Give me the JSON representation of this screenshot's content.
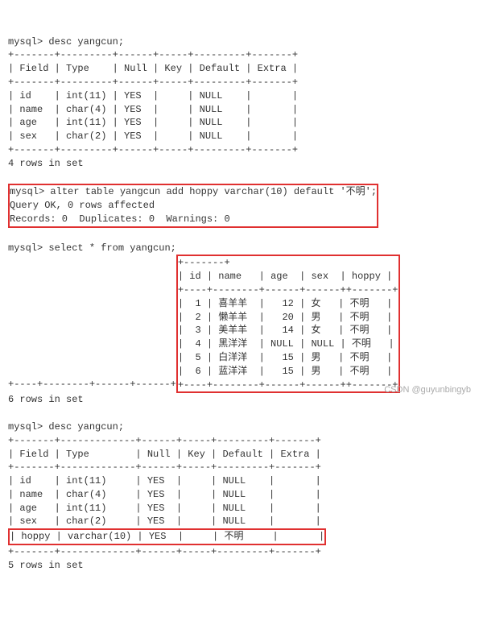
{
  "prompt": "mysql>",
  "cmd1": "desc yangcun;",
  "desc1": {
    "sep": "+-------+---------+------+-----+---------+-------+",
    "hdr": "| Field | Type    | Null | Key | Default | Extra |",
    "rows": [
      "| id    | int(11) | YES  |     | NULL    |       |",
      "| name  | char(4) | YES  |     | NULL    |       |",
      "| age   | int(11) | YES  |     | NULL    |       |",
      "| sex   | char(2) | YES  |     | NULL    |       |"
    ],
    "footer": "4 rows in set"
  },
  "alter": {
    "cmd": "alter table yangcun add hoppy varchar(10) default '不明';",
    "l1": "Query OK, 0 rows affected",
    "l2": "Records: 0  Duplicates: 0  Warnings: 0"
  },
  "cmd3": "select * from yangcun;",
  "sel": {
    "sep": "+----+--------+------+------+",
    "hdr": "| id | name   | age  | sex  ",
    "rows": [
      "|  1 | 喜羊羊  |   12 | 女   ",
      "|  2 | 懒羊羊  |   20 | 男   ",
      "|  3 | 美羊羊  |   14 | 女   ",
      "|  4 | 黑洋洋  | NULL | NULL ",
      "|  5 | 白洋洋  |   15 | 男   ",
      "|  6 | 蓝洋洋  |   15 | 男   "
    ],
    "hsep": "+-------+",
    "hhdr": "| hoppy |",
    "hrows": [
      "| 不明   |",
      "| 不明   |",
      "| 不明   |",
      "| 不明   |",
      "| 不明   |",
      "| 不明   |"
    ],
    "footer": "6 rows in set"
  },
  "cmd4": "desc yangcun;",
  "desc2": {
    "sep": "+-------+-------------+------+-----+---------+-------+",
    "hdr": "| Field | Type        | Null | Key | Default | Extra |",
    "rows": [
      "| id    | int(11)     | YES  |     | NULL    |       |",
      "| name  | char(4)     | YES  |     | NULL    |       |",
      "| age   | int(11)     | YES  |     | NULL    |       |",
      "| sex   | char(2)     | YES  |     | NULL    |       |"
    ],
    "hrow": "| hoppy | varchar(10) | YES  |     | 不明     |       |",
    "footer": "5 rows in set"
  },
  "wm": "CSDN @guyunbingyb"
}
